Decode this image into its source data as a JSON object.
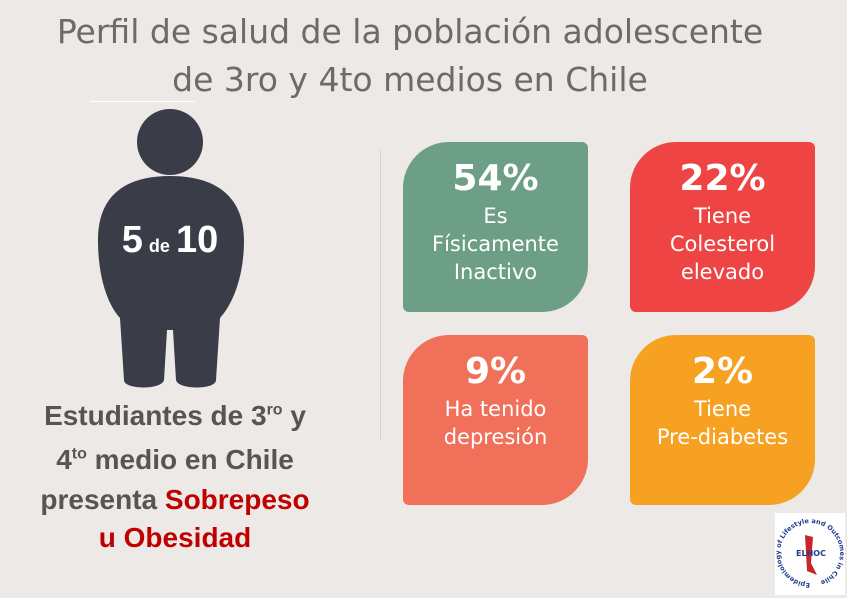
{
  "header": {
    "title_line1": "Perfil de salud de la población adolescente",
    "title_line2": "de 3ro y 4to medios en Chile"
  },
  "figure": {
    "number1": "5",
    "connector": "de",
    "number2": "10"
  },
  "caption": {
    "line1": {
      "text": "Estudiantes de 3",
      "sup": "ro",
      "after": " y"
    },
    "line2": {
      "text": "4",
      "sup": "to",
      "after": " medio en Chile"
    },
    "line3": {
      "text": "presenta ",
      "highlight": "Sobrepeso"
    },
    "line4": {
      "highlight": "u Obesidad"
    }
  },
  "cards": [
    {
      "percent": "54%",
      "lines": [
        "Es",
        "Físicamente",
        "Inactivo"
      ]
    },
    {
      "percent": "22%",
      "lines": [
        "Tiene",
        "Colesterol",
        "elevado"
      ]
    },
    {
      "percent": "9%",
      "lines": [
        "Ha tenido",
        "depresión"
      ]
    },
    {
      "percent": "2%",
      "lines": [
        "Tiene",
        "Pre-diabetes"
      ]
    }
  ],
  "logo": {
    "ring": "Epidemiology of Lifestyle and Outcomes in Chile",
    "acronym": "ELHOC"
  }
}
